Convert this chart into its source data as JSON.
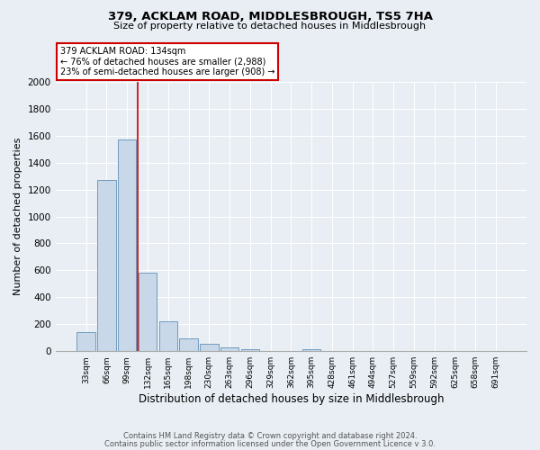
{
  "title": "379, ACKLAM ROAD, MIDDLESBROUGH, TS5 7HA",
  "subtitle": "Size of property relative to detached houses in Middlesbrough",
  "xlabel": "Distribution of detached houses by size in Middlesbrough",
  "ylabel": "Number of detached properties",
  "bar_color": "#c8d8e8",
  "bar_edge_color": "#6090b8",
  "background_color": "#e8eef4",
  "grid_color": "#ffffff",
  "annotation_title": "379 ACKLAM ROAD: 134sqm",
  "annotation_line1": "← 76% of detached houses are smaller (2,988)",
  "annotation_line2": "23% of semi-detached houses are larger (908) →",
  "annotation_box_color": "#ffffff",
  "annotation_box_edge_color": "#cc0000",
  "footer1": "Contains HM Land Registry data © Crown copyright and database right 2024.",
  "footer2": "Contains public sector information licensed under the Open Government Licence v 3.0.",
  "categories": [
    "33sqm",
    "66sqm",
    "99sqm",
    "132sqm",
    "165sqm",
    "198sqm",
    "230sqm",
    "263sqm",
    "296sqm",
    "329sqm",
    "362sqm",
    "395sqm",
    "428sqm",
    "461sqm",
    "494sqm",
    "527sqm",
    "559sqm",
    "592sqm",
    "625sqm",
    "658sqm",
    "691sqm"
  ],
  "values": [
    140,
    1270,
    1570,
    580,
    220,
    95,
    55,
    25,
    15,
    0,
    0,
    15,
    0,
    0,
    0,
    0,
    0,
    0,
    0,
    0,
    0
  ],
  "ylim": [
    0,
    2000
  ],
  "yticks": [
    0,
    200,
    400,
    600,
    800,
    1000,
    1200,
    1400,
    1600,
    1800,
    2000
  ],
  "red_line_idx": 3
}
